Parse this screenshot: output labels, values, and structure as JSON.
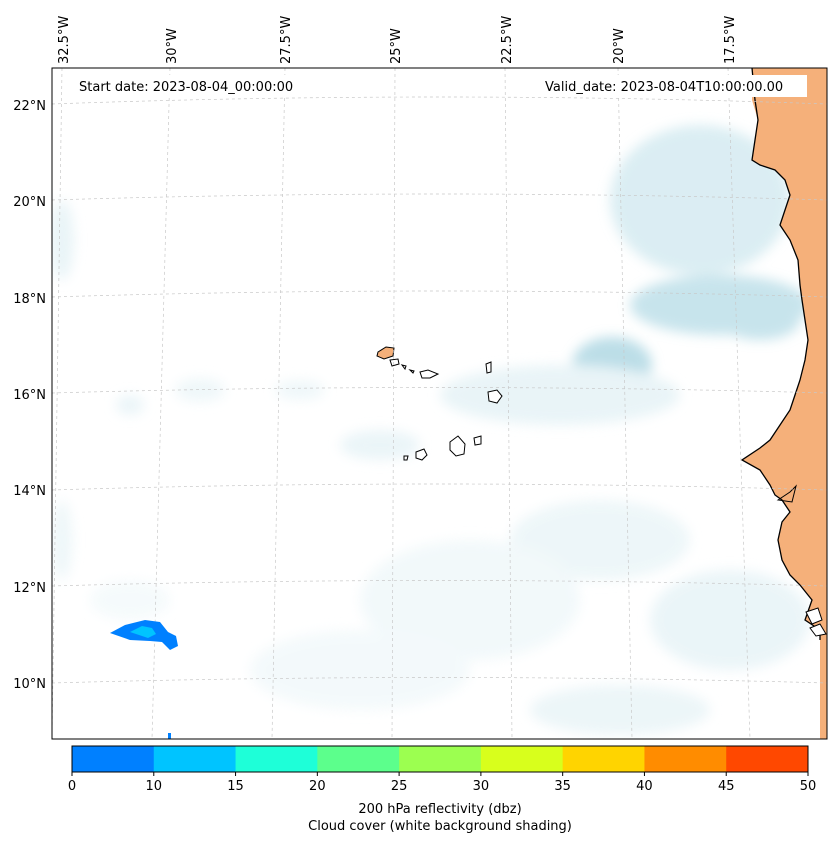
{
  "map": {
    "start_label": "Start date: 2023-08-04_00:00:00",
    "valid_label": "Valid_date: 2023-08-04T10:00:00.00",
    "lon_labels": [
      "32.5°W",
      "30°W",
      "27.5°W",
      "25°W",
      "22.5°W",
      "20°W",
      "17.5°W"
    ],
    "lat_labels": [
      "22°N",
      "20°N",
      "18°N",
      "16°N",
      "14°N",
      "12°N",
      "10°N"
    ],
    "land_color": "#f5b07a",
    "cloud_color": "#aed8e4",
    "coast_color": "#000000",
    "grid_color": "#c8c8c8"
  },
  "colorbar": {
    "title": "200 hPa reflectivity (dbz)",
    "subtitle": "Cloud cover (white background shading)",
    "ticks": [
      "0",
      "10",
      "15",
      "20",
      "25",
      "30",
      "35",
      "40",
      "45",
      "50"
    ],
    "colors": [
      "#0080ff",
      "#00c4ff",
      "#1effd8",
      "#5cff8c",
      "#9cff50",
      "#d8ff1c",
      "#ffd400",
      "#ff8c00",
      "#ff4800"
    ]
  }
}
